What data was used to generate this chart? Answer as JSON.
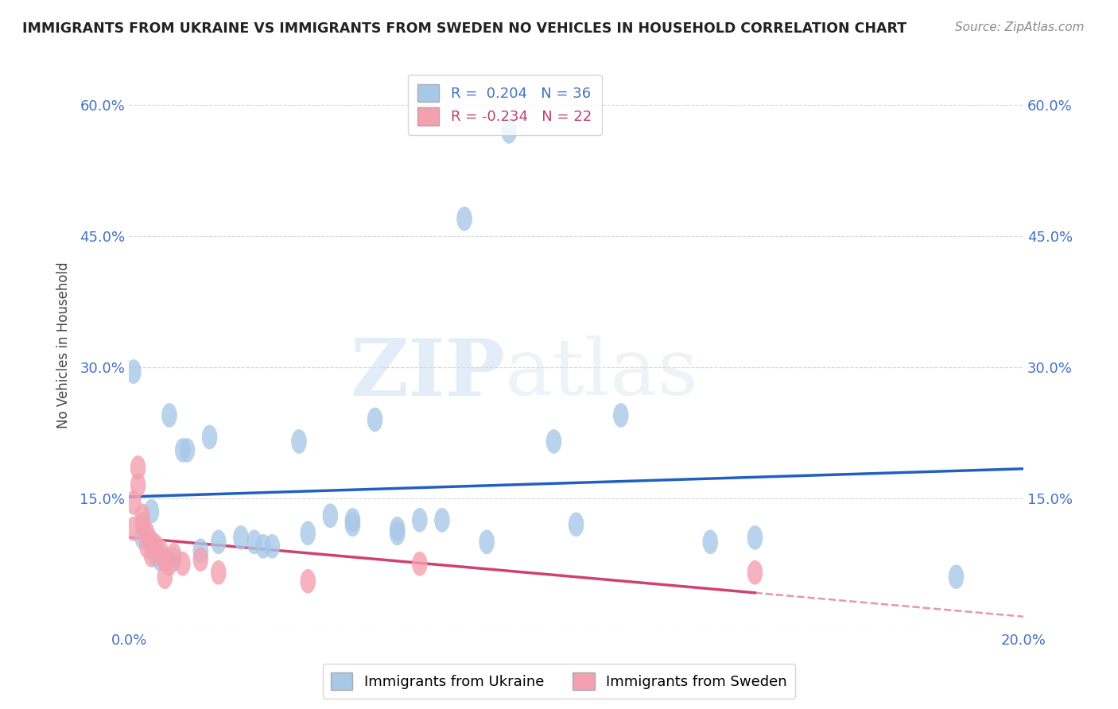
{
  "title": "IMMIGRANTS FROM UKRAINE VS IMMIGRANTS FROM SWEDEN NO VEHICLES IN HOUSEHOLD CORRELATION CHART",
  "source": "Source: ZipAtlas.com",
  "ylabel": "No Vehicles in Household",
  "xlim": [
    0.0,
    0.2
  ],
  "ylim": [
    0.0,
    0.65
  ],
  "ukraine_color": "#a8c8e8",
  "sweden_color": "#f4a0b0",
  "ukraine_line_color": "#2060c0",
  "sweden_line_color": "#d04070",
  "ukraine_R": 0.204,
  "ukraine_N": 36,
  "sweden_R": -0.234,
  "sweden_N": 22,
  "ukraine_scatter_x": [
    0.001,
    0.003,
    0.004,
    0.005,
    0.006,
    0.007,
    0.009,
    0.01,
    0.012,
    0.013,
    0.016,
    0.018,
    0.02,
    0.025,
    0.028,
    0.03,
    0.032,
    0.038,
    0.045,
    0.05,
    0.055,
    0.06,
    0.065,
    0.07,
    0.08,
    0.085,
    0.095,
    0.1,
    0.11,
    0.13,
    0.14,
    0.06,
    0.075,
    0.05,
    0.04,
    0.185
  ],
  "ukraine_scatter_y": [
    0.295,
    0.105,
    0.105,
    0.135,
    0.085,
    0.08,
    0.245,
    0.08,
    0.205,
    0.205,
    0.09,
    0.22,
    0.1,
    0.105,
    0.1,
    0.095,
    0.095,
    0.215,
    0.13,
    0.12,
    0.24,
    0.115,
    0.125,
    0.125,
    0.1,
    0.57,
    0.215,
    0.12,
    0.245,
    0.1,
    0.105,
    0.11,
    0.47,
    0.125,
    0.11,
    0.06
  ],
  "sweden_scatter_x": [
    0.001,
    0.001,
    0.002,
    0.002,
    0.003,
    0.003,
    0.004,
    0.004,
    0.005,
    0.005,
    0.006,
    0.007,
    0.008,
    0.008,
    0.009,
    0.01,
    0.012,
    0.016,
    0.02,
    0.04,
    0.065,
    0.14
  ],
  "sweden_scatter_y": [
    0.145,
    0.115,
    0.165,
    0.185,
    0.13,
    0.12,
    0.11,
    0.095,
    0.1,
    0.085,
    0.095,
    0.09,
    0.08,
    0.06,
    0.075,
    0.085,
    0.075,
    0.08,
    0.065,
    0.055,
    0.075,
    0.065
  ],
  "watermark_zip": "ZIP",
  "watermark_atlas": "atlas",
  "background_color": "#ffffff"
}
